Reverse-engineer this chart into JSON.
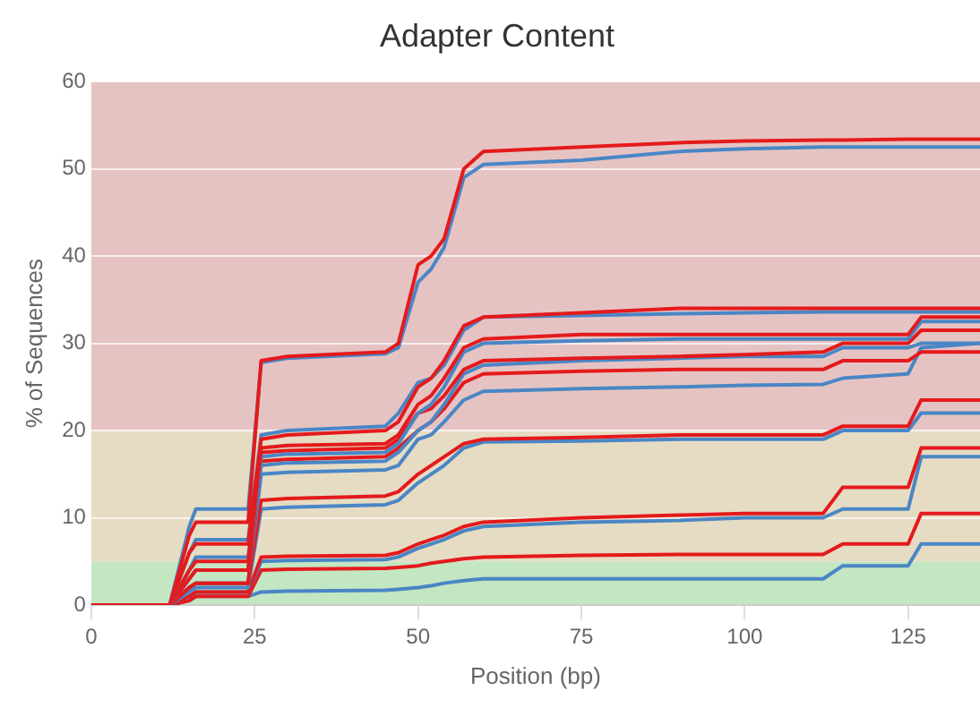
{
  "chart_data": {
    "type": "line",
    "title": "Adapter Content",
    "xlabel": "Position (bp)",
    "ylabel": "% of Sequences",
    "x": [
      0,
      12,
      15,
      16,
      24,
      26,
      30,
      45,
      47,
      50,
      52,
      54,
      57,
      60,
      75,
      90,
      100,
      112,
      115,
      125,
      127,
      136
    ],
    "xlim": [
      0,
      136
    ],
    "xticks": [
      0,
      25,
      50,
      75,
      100,
      125
    ],
    "ylim": [
      0,
      60
    ],
    "yticks": [
      0,
      10,
      20,
      30,
      40,
      50,
      60
    ],
    "grid": "y",
    "legend": false,
    "marker": "none",
    "line_style": "solid",
    "bands": [
      {
        "axis": "y",
        "from": 0,
        "to": 5,
        "color": "#c3e6c3"
      },
      {
        "axis": "y",
        "from": 5,
        "to": 20,
        "color": "#e6dcc3"
      },
      {
        "axis": "y",
        "from": 20,
        "to": 60,
        "color": "#e6c3c3"
      }
    ],
    "series": [
      {
        "color": "#e41a1c",
        "values": [
          0,
          0,
          8,
          9.5,
          9.5,
          28,
          28.5,
          29,
          30,
          39,
          40,
          42,
          50,
          52,
          52.5,
          53,
          53.2,
          53.3,
          53.3,
          53.4,
          53.4,
          53.4
        ]
      },
      {
        "color": "#4a86c5",
        "values": [
          0,
          0,
          9,
          11,
          11,
          27.8,
          28.3,
          28.8,
          29.5,
          37,
          38.5,
          41,
          49,
          50.5,
          51,
          52,
          52.3,
          52.5,
          52.5,
          52.5,
          52.5,
          52.5
        ]
      },
      {
        "color": "#e41a1c",
        "values": [
          0,
          0,
          6,
          7,
          7,
          19,
          19.5,
          20,
          21,
          25,
          26,
          28,
          32,
          33,
          33.5,
          34,
          34,
          34,
          34,
          34,
          34,
          34
        ]
      },
      {
        "color": "#4a86c5",
        "values": [
          0,
          0,
          6,
          7.5,
          7.5,
          19.5,
          20,
          20.5,
          22,
          25.5,
          26,
          27.5,
          31.5,
          33,
          33.2,
          33.4,
          33.5,
          33.6,
          33.6,
          33.6,
          33.6,
          33.6
        ]
      },
      {
        "color": "#e41a1c",
        "values": [
          0,
          0,
          4,
          5,
          5,
          18,
          18.3,
          18.5,
          19.5,
          23,
          24,
          26,
          29.5,
          30.5,
          31,
          31,
          31,
          31,
          31,
          31,
          33,
          33
        ]
      },
      {
        "color": "#4a86c5",
        "values": [
          0,
          0,
          4,
          5.5,
          5.5,
          17,
          17.3,
          17.5,
          18.5,
          22,
          23,
          25,
          29,
          30,
          30.3,
          30.5,
          30.5,
          30.5,
          30.5,
          30.5,
          32.5,
          32.5
        ]
      },
      {
        "color": "#e41a1c",
        "values": [
          0,
          0,
          3,
          4,
          4,
          17.5,
          17.7,
          18,
          19,
          22,
          22.5,
          24,
          27,
          28,
          28.3,
          28.5,
          28.7,
          29,
          30,
          30,
          31.5,
          31.5
        ]
      },
      {
        "color": "#4a86c5",
        "values": [
          0,
          0,
          3,
          4,
          4,
          16,
          16.3,
          16.5,
          17.5,
          20,
          21,
          23,
          26.5,
          27.5,
          28,
          28.3,
          28.5,
          28.5,
          29.5,
          29.5,
          30,
          30
        ]
      },
      {
        "color": "#e41a1c",
        "values": [
          0,
          0,
          2,
          2.5,
          2.5,
          16.5,
          16.7,
          17,
          18,
          20,
          21,
          22.5,
          25.5,
          26.5,
          26.8,
          27,
          27,
          27,
          28,
          28,
          29,
          29
        ]
      },
      {
        "color": "#4a86c5",
        "values": [
          0,
          0,
          2,
          2.5,
          2.5,
          15,
          15.2,
          15.5,
          16,
          19,
          19.5,
          21,
          23.5,
          24.5,
          24.8,
          25,
          25.2,
          25.3,
          26,
          26.5,
          29.5,
          30
        ]
      },
      {
        "color": "#e41a1c",
        "values": [
          0,
          0,
          2,
          2.5,
          2.5,
          12,
          12.2,
          12.5,
          13,
          15,
          16,
          17,
          18.5,
          19,
          19.2,
          19.5,
          19.5,
          19.5,
          20.5,
          20.5,
          23.5,
          23.5
        ]
      },
      {
        "color": "#4a86c5",
        "values": [
          0,
          0,
          1.5,
          2,
          2,
          11,
          11.2,
          11.5,
          12,
          14,
          15,
          16,
          18,
          18.7,
          18.8,
          19,
          19,
          19,
          20,
          20,
          22,
          22
        ]
      },
      {
        "color": "#e41a1c",
        "values": [
          0,
          0,
          1,
          1.5,
          1.5,
          5.5,
          5.6,
          5.7,
          6,
          7,
          7.5,
          8,
          9,
          9.5,
          10,
          10.3,
          10.5,
          10.5,
          13.5,
          13.5,
          18,
          18
        ]
      },
      {
        "color": "#4a86c5",
        "values": [
          0,
          0,
          1,
          1.5,
          1.5,
          5,
          5.1,
          5.2,
          5.5,
          6.5,
          7,
          7.5,
          8.5,
          9,
          9.5,
          9.7,
          10,
          10,
          11,
          11,
          17,
          17
        ]
      },
      {
        "color": "#e41a1c",
        "values": [
          0,
          0,
          0.5,
          1,
          1,
          4,
          4.1,
          4.2,
          4.3,
          4.5,
          4.8,
          5,
          5.3,
          5.5,
          5.7,
          5.8,
          5.8,
          5.8,
          7,
          7,
          10.5,
          10.5
        ]
      },
      {
        "color": "#4a86c5",
        "values": [
          0,
          0,
          0.5,
          1,
          1,
          1.5,
          1.6,
          1.7,
          1.8,
          2,
          2.2,
          2.5,
          2.8,
          3,
          3,
          3,
          3,
          3,
          4.5,
          4.5,
          7,
          7
        ]
      }
    ]
  }
}
